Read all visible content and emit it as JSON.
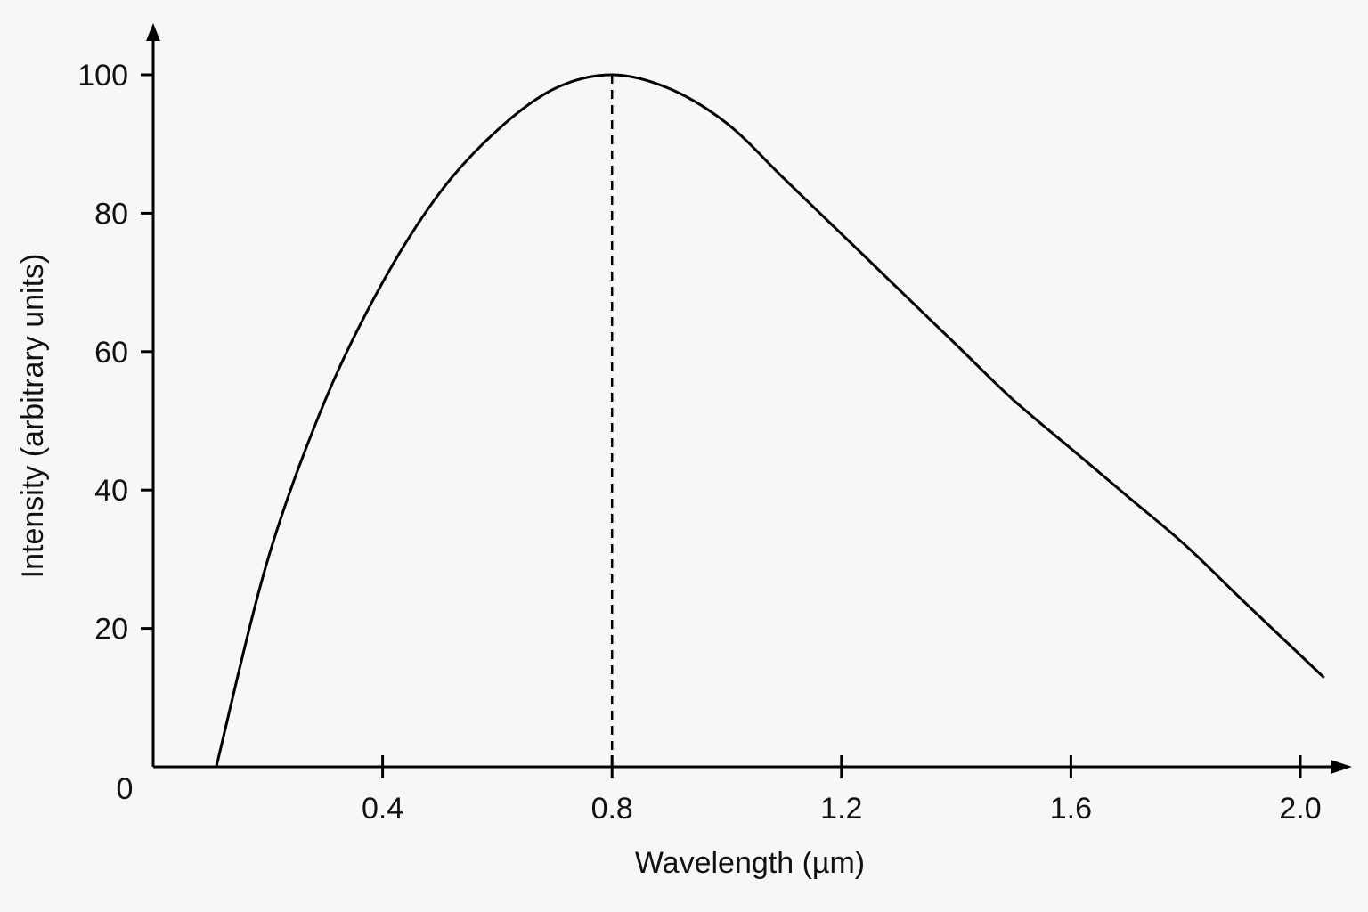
{
  "chart_data": {
    "type": "line",
    "title": "",
    "xlabel": "Wavelength (µm)",
    "ylabel": "Intensity (arbitrary units)",
    "xlim": [
      0,
      2.05
    ],
    "ylim": [
      0,
      100
    ],
    "x_ticks": [
      0.4,
      0.8,
      1.2,
      1.6,
      2.0
    ],
    "x_tick_labels": [
      "0.4",
      "0.8",
      "1.2",
      "1.6",
      "2.0"
    ],
    "y_ticks": [
      20,
      40,
      60,
      80,
      100
    ],
    "y_tick_labels": [
      "20",
      "40",
      "60",
      "80",
      "100"
    ],
    "origin_label": "0",
    "grid": false,
    "legend": "none",
    "series": [
      {
        "x": [
          0.11,
          0.2,
          0.3,
          0.4,
          0.5,
          0.6,
          0.7,
          0.8,
          0.9,
          1.0,
          1.1,
          1.2,
          1.3,
          1.4,
          1.5,
          1.6,
          1.7,
          1.8,
          1.9,
          2.04
        ],
        "y": [
          0,
          30,
          53,
          70,
          83,
          92,
          98,
          100,
          98,
          93,
          85,
          77,
          69,
          61,
          53,
          46,
          39,
          32,
          24,
          13
        ],
        "color": "#000000"
      }
    ],
    "annotations": [
      {
        "type": "dashed-vertical-line",
        "x": 0.8,
        "y_from": 0,
        "y_to": 100
      }
    ]
  }
}
